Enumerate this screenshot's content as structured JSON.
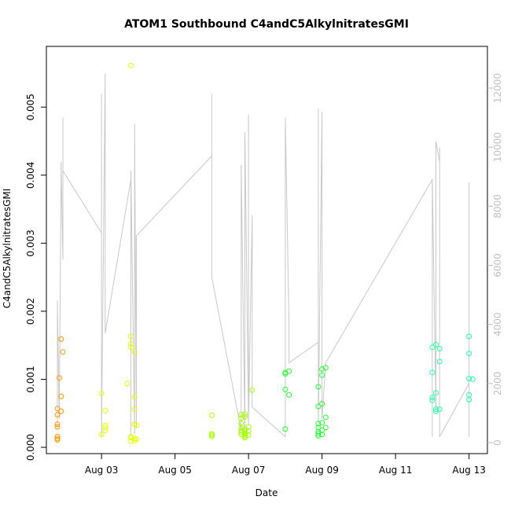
{
  "chart_data": {
    "type": "scatter",
    "title": "ATOM1 Southbound C4andC5AlkylnitratesGMI",
    "xlabel": "Date",
    "ylabel": "C4andC5AlkylnitratesGMI",
    "xlim": [
      "Aug 01 12:00",
      "Aug 13 12:00"
    ],
    "ylim": [
      0,
      0.0058
    ],
    "y_ticks": [
      "0.000",
      "0.001",
      "0.002",
      "0.003",
      "0.004",
      "0.005"
    ],
    "x_ticks": [
      "Aug 03",
      "Aug 05",
      "Aug 07",
      "Aug 09",
      "Aug 11",
      "Aug 13"
    ],
    "right_axis": {
      "ylim": [
        0,
        13000
      ],
      "ticks": [
        "0",
        "2000",
        "4000",
        "6000",
        "8000",
        "10000",
        "12000"
      ],
      "color": "#c0c0c0"
    },
    "grid": false,
    "series": [
      {
        "type": "scatter",
        "values": [
          [
            "Aug 01 19:12",
            0.00016
          ],
          [
            "Aug 01 19:12",
            0.00013
          ],
          [
            "Aug 01 19:12",
            0.00011
          ],
          [
            "Aug 01 19:12",
            0.0003
          ],
          [
            "Aug 01 19:12",
            0.00034
          ],
          [
            "Aug 01 19:12",
            0.00048
          ],
          [
            "Aug 01 19:12",
            0.00057
          ],
          [
            "Aug 01 20:24",
            0.00102
          ],
          [
            "Aug 01 21:36",
            0.00053
          ],
          [
            "Aug 01 21:36",
            0.00075
          ],
          [
            "Aug 01 21:36",
            0.00159
          ],
          [
            "Aug 01 22:48",
            0.0014
          ]
        ],
        "color": "#ff9500"
      },
      {
        "type": "scatter",
        "values": [
          [
            "Aug 03 00:00",
            0.00079
          ],
          [
            "Aug 03 02:24",
            0.00054
          ],
          [
            "Aug 03 02:24",
            0.00032
          ],
          [
            "Aug 03 02:24",
            0.00029
          ],
          [
            "Aug 03 02:24",
            0.00025
          ],
          [
            "Aug 03 00:00",
            0.00019
          ],
          [
            "Aug 03 19:12",
            0.00561
          ],
          [
            "Aug 03 19:12",
            0.00163
          ],
          [
            "Aug 03 19:12",
            0.00152
          ],
          [
            "Aug 03 19:12",
            0.00147
          ],
          [
            "Aug 03 21:36",
            0.0014
          ],
          [
            "Aug 03 16:48",
            0.00094
          ],
          [
            "Aug 03 21:36",
            0.00074
          ],
          [
            "Aug 03 21:36",
            0.00056
          ],
          [
            "Aug 03 21:36",
            0.00034
          ],
          [
            "Aug 03 22:48",
            0.00032
          ],
          [
            "Aug 03 19:12",
            0.00016
          ],
          [
            "Aug 03 19:12",
            0.00014
          ],
          [
            "Aug 03 21:36",
            0.00013
          ],
          [
            "Aug 03 22:48",
            0.00012
          ],
          [
            "Aug 03 21:36",
            0.0001
          ],
          [
            "Aug 03 19:12",
            9e-05
          ]
        ],
        "color": "#e6ff00"
      },
      {
        "type": "scatter",
        "values": [
          [
            "Aug 06 00:00",
            0.00047
          ],
          [
            "Aug 06 00:00",
            0.0002
          ],
          [
            "Aug 06 00:00",
            0.00018
          ],
          [
            "Aug 06 00:00",
            0.00016
          ],
          [
            "Aug 06 19:12",
            0.00048
          ],
          [
            "Aug 06 19:12",
            0.00043
          ],
          [
            "Aug 06 21:36",
            0.00049
          ],
          [
            "Aug 06 21:36",
            0.00045
          ],
          [
            "Aug 06 19:12",
            0.00035
          ],
          [
            "Aug 06 19:12",
            0.00029
          ],
          [
            "Aug 06 21:36",
            0.00027
          ],
          [
            "Aug 06 19:12",
            0.00025
          ],
          [
            "Aug 06 21:36",
            0.00024
          ],
          [
            "Aug 06 19:12",
            0.00022
          ],
          [
            "Aug 06 21:36",
            0.00021
          ],
          [
            "Aug 06 21:36",
            0.0002
          ],
          [
            "Aug 06 19:12",
            0.00019
          ],
          [
            "Aug 06 21:36",
            0.00018
          ],
          [
            "Aug 06 21:36",
            0.00016
          ],
          [
            "Aug 06 21:36",
            0.00014
          ],
          [
            "Aug 07 02:24",
            0.00084
          ],
          [
            "Aug 07 00:00",
            0.0003
          ],
          [
            "Aug 07 00:00",
            0.00024
          ],
          [
            "Aug 07 00:00",
            0.00018
          ]
        ],
        "color": "#a6ff00"
      },
      {
        "type": "scatter",
        "values": [
          [
            "Aug 08 00:00",
            0.0011
          ],
          [
            "Aug 08 02:24",
            0.00112
          ],
          [
            "Aug 08 00:00",
            0.00108
          ],
          [
            "Aug 08 00:00",
            0.00085
          ],
          [
            "Aug 08 02:24",
            0.00077
          ],
          [
            "Aug 08 00:00",
            0.00027
          ],
          [
            "Aug 08 21:36",
            0.00089
          ],
          [
            "Aug 08 21:36",
            0.0006
          ],
          [
            "Aug 09 00:00",
            0.00064
          ],
          [
            "Aug 09 02:24",
            0.00117
          ],
          [
            "Aug 09 00:00",
            0.00115
          ],
          [
            "Aug 09 00:00",
            0.00106
          ],
          [
            "Aug 09 02:24",
            0.00044
          ],
          [
            "Aug 08 21:36",
            0.00035
          ],
          [
            "Aug 09 00:00",
            0.00036
          ],
          [
            "Aug 08 21:36",
            0.00029
          ],
          [
            "Aug 09 02:24",
            0.00029
          ],
          [
            "Aug 09 00:00",
            0.00025
          ],
          [
            "Aug 08 21:36",
            0.00023
          ],
          [
            "Aug 08 21:36",
            0.0002
          ],
          [
            "Aug 09 00:00",
            0.00019
          ],
          [
            "Aug 08 21:36",
            0.00017
          ]
        ],
        "color": "#22ff33"
      },
      {
        "type": "scatter",
        "values": [
          [
            "Aug 12 00:00",
            0.00147
          ],
          [
            "Aug 12 02:24",
            0.00151
          ],
          [
            "Aug 12 04:48",
            0.00145
          ],
          [
            "Aug 12 04:48",
            0.00126
          ],
          [
            "Aug 12 00:00",
            0.0011
          ],
          [
            "Aug 12 02:24",
            0.0008
          ],
          [
            "Aug 12 00:00",
            0.00073
          ],
          [
            "Aug 12 00:00",
            0.00069
          ],
          [
            "Aug 12 02:24",
            0.00056
          ],
          [
            "Aug 12 04:48",
            0.00056
          ],
          [
            "Aug 12 02:24",
            0.00053
          ],
          [
            "Aug 13 00:00",
            0.00163
          ],
          [
            "Aug 13 00:00",
            0.00138
          ],
          [
            "Aug 13 00:00",
            0.00101
          ],
          [
            "Aug 13 02:24",
            0.001
          ],
          [
            "Aug 13 00:00",
            0.00077
          ],
          [
            "Aug 13 00:00",
            0.0007
          ]
        ],
        "color": "#22ffaa"
      },
      {
        "type": "line",
        "axis": "right",
        "color": "#c8c8c8",
        "values": [
          [
            "Aug 01 19:12",
            500
          ],
          [
            "Aug 01 19:12",
            4800
          ],
          [
            "Aug 01 20:24",
            800
          ],
          [
            "Aug 01 21:36",
            9000
          ],
          [
            "Aug 01 21:36",
            9500
          ],
          [
            "Aug 01 22:48",
            6200
          ],
          [
            "Aug 01 22:48",
            11000
          ],
          [
            "Aug 01 22:48",
            9200
          ],
          [
            "Aug 03 00:00",
            7100
          ],
          [
            "Aug 03 00:00",
            11800
          ],
          [
            "Aug 03 00:00",
            200
          ],
          [
            "Aug 03 02:24",
            12500
          ],
          [
            "Aug 03 02:24",
            3700
          ],
          [
            "Aug 03 19:12",
            8900
          ],
          [
            "Aug 03 19:12",
            200
          ],
          [
            "Aug 03 19:12",
            9200
          ],
          [
            "Aug 03 21:36",
            300
          ],
          [
            "Aug 03 21:36",
            10800
          ],
          [
            "Aug 03 22:48",
            500
          ],
          [
            "Aug 03 22:48",
            7000
          ],
          [
            "Aug 06 00:00",
            9700
          ],
          [
            "Aug 06 00:00",
            11800
          ],
          [
            "Aug 06 00:00",
            5600
          ],
          [
            "Aug 06 19:12",
            400
          ],
          [
            "Aug 06 19:12",
            9400
          ],
          [
            "Aug 06 21:36",
            300
          ],
          [
            "Aug 06 21:36",
            10500
          ],
          [
            "Aug 07 00:00",
            800
          ],
          [
            "Aug 07 00:00",
            11100
          ],
          [
            "Aug 07 00:00",
            600
          ],
          [
            "Aug 07 02:24",
            7700
          ],
          [
            "Aug 07 02:24",
            1200
          ],
          [
            "Aug 08 00:00",
            200
          ],
          [
            "Aug 08 00:00",
            11000
          ],
          [
            "Aug 08 02:24",
            4100
          ],
          [
            "Aug 08 02:24",
            2700
          ],
          [
            "Aug 08 21:36",
            3400
          ],
          [
            "Aug 08 21:36",
            11300
          ],
          [
            "Aug 08 21:36",
            500
          ],
          [
            "Aug 09 00:00",
            11200
          ],
          [
            "Aug 09 00:00",
            800
          ],
          [
            "Aug 09 02:24",
            2700
          ],
          [
            "Aug 12 00:00",
            8900
          ],
          [
            "Aug 12 00:00",
            200
          ],
          [
            "Aug 12 00:00",
            8900
          ],
          [
            "Aug 12 02:24",
            1100
          ],
          [
            "Aug 12 02:24",
            10200
          ],
          [
            "Aug 12 04:48",
            9500
          ],
          [
            "Aug 12 04:48",
            10000
          ],
          [
            "Aug 12 04:48",
            200
          ],
          [
            "Aug 13 00:00",
            2000
          ],
          [
            "Aug 13 00:00",
            8800
          ],
          [
            "Aug 13 00:00",
            200
          ]
        ]
      }
    ]
  }
}
